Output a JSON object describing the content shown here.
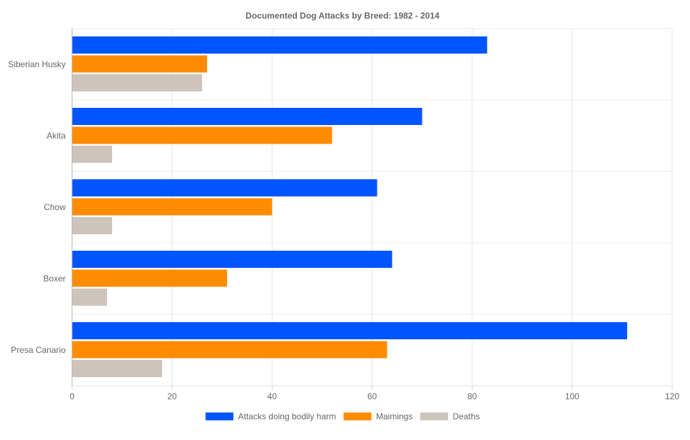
{
  "chart_data": {
    "type": "bar",
    "orientation": "horizontal",
    "title": "Documented Dog Attacks by Breed: 1982 - 2014",
    "categories": [
      "Siberian Husky",
      "Akita",
      "Chow",
      "Boxer",
      "Presa Canario"
    ],
    "series": [
      {
        "name": "Attacks doing bodily harm",
        "color": "#0055ff",
        "values": [
          83,
          70,
          61,
          64,
          111
        ]
      },
      {
        "name": "Maimings",
        "color": "#ff8c00",
        "values": [
          27,
          52,
          40,
          31,
          63
        ]
      },
      {
        "name": "Deaths",
        "color": "#cdc4bc",
        "values": [
          26,
          8,
          8,
          7,
          18
        ]
      }
    ],
    "xlim": [
      0,
      120
    ],
    "xticks": [
      "0",
      "20",
      "40",
      "60",
      "80",
      "100",
      "120"
    ],
    "grid": true,
    "legend_position": "bottom-center"
  }
}
